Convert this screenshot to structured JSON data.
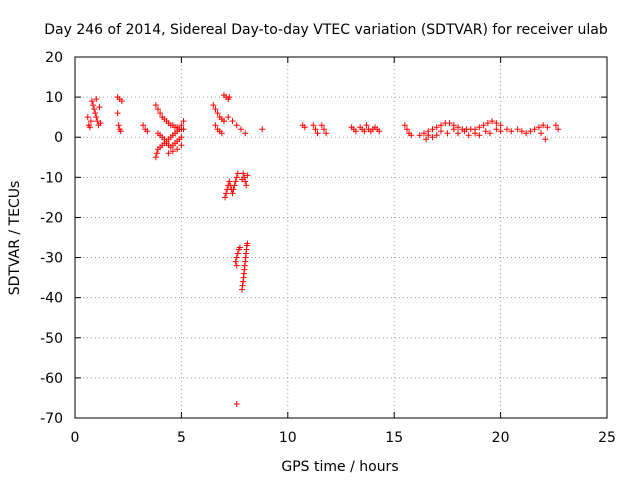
{
  "chart_data": {
    "type": "scatter",
    "title": "Day 246 of 2014, Sidereal Day-to-day VTEC variation (SDTVAR) for receiver ulab",
    "xlabel": "GPS time / hours",
    "ylabel": "SDTVAR / TECUs",
    "xlim": [
      0,
      25
    ],
    "ylim": [
      -70,
      20
    ],
    "xticks": [
      0,
      5,
      10,
      15,
      20,
      25
    ],
    "yticks": [
      -70,
      -60,
      -50,
      -40,
      -30,
      -20,
      -10,
      0,
      10,
      20
    ],
    "grid": true,
    "marker": "+",
    "series_color": "#ff0000",
    "series": [
      {
        "name": "SDTVAR",
        "points": [
          [
            0.6,
            5
          ],
          [
            0.65,
            3
          ],
          [
            0.7,
            2.5
          ],
          [
            0.8,
            9
          ],
          [
            0.85,
            8
          ],
          [
            0.9,
            7
          ],
          [
            0.95,
            6
          ],
          [
            1.0,
            5
          ],
          [
            1.05,
            4
          ],
          [
            1.1,
            3
          ],
          [
            1.15,
            7.5
          ],
          [
            1.2,
            3.5
          ],
          [
            1.0,
            9.5
          ],
          [
            0.75,
            4
          ],
          [
            2.0,
            10
          ],
          [
            2.1,
            9.5
          ],
          [
            2.2,
            9
          ],
          [
            2.0,
            6
          ],
          [
            2.05,
            3
          ],
          [
            2.1,
            2
          ],
          [
            2.15,
            1.5
          ],
          [
            3.2,
            3
          ],
          [
            3.3,
            2
          ],
          [
            3.4,
            1.5
          ],
          [
            3.8,
            8
          ],
          [
            3.9,
            7
          ],
          [
            4.0,
            6
          ],
          [
            4.1,
            5
          ],
          [
            4.2,
            4.5
          ],
          [
            4.3,
            4
          ],
          [
            4.4,
            3.5
          ],
          [
            4.5,
            3
          ],
          [
            4.6,
            3
          ],
          [
            4.7,
            2.5
          ],
          [
            4.8,
            2.5
          ],
          [
            4.9,
            2
          ],
          [
            5.0,
            2
          ],
          [
            5.1,
            2
          ],
          [
            3.8,
            -5
          ],
          [
            3.85,
            -4
          ],
          [
            3.9,
            -3
          ],
          [
            4.0,
            -2.5
          ],
          [
            4.1,
            -2
          ],
          [
            4.2,
            -1.5
          ],
          [
            4.3,
            -1
          ],
          [
            4.4,
            -0.5
          ],
          [
            4.5,
            0
          ],
          [
            4.6,
            0.5
          ],
          [
            4.7,
            1
          ],
          [
            4.8,
            1.5
          ],
          [
            4.9,
            2
          ],
          [
            5.0,
            3
          ],
          [
            5.1,
            4
          ],
          [
            3.9,
            1
          ],
          [
            4.0,
            0.5
          ],
          [
            4.1,
            0
          ],
          [
            4.2,
            -0.5
          ],
          [
            4.3,
            -1.5
          ],
          [
            4.4,
            -2
          ],
          [
            4.5,
            -2.5
          ],
          [
            4.6,
            -2
          ],
          [
            4.7,
            -1.5
          ],
          [
            4.8,
            -1
          ],
          [
            4.9,
            -0.5
          ],
          [
            5.0,
            0
          ],
          [
            4.4,
            -4
          ],
          [
            4.6,
            -3.5
          ],
          [
            4.8,
            -3
          ],
          [
            5.0,
            -2
          ],
          [
            6.5,
            8
          ],
          [
            6.6,
            7
          ],
          [
            6.7,
            6
          ],
          [
            6.8,
            5
          ],
          [
            6.9,
            4.5
          ],
          [
            7.0,
            4
          ],
          [
            6.6,
            3
          ],
          [
            6.7,
            2
          ],
          [
            6.8,
            1.5
          ],
          [
            6.9,
            1
          ],
          [
            7.0,
            4
          ],
          [
            7.2,
            5
          ],
          [
            7.4,
            4
          ],
          [
            7.6,
            3
          ],
          [
            7.8,
            2
          ],
          [
            8.0,
            1
          ],
          [
            7.0,
            10.5
          ],
          [
            7.1,
            10
          ],
          [
            7.2,
            9.5
          ],
          [
            7.25,
            10
          ],
          [
            7.05,
            -15
          ],
          [
            7.1,
            -14
          ],
          [
            7.15,
            -13
          ],
          [
            7.2,
            -12
          ],
          [
            7.25,
            -11
          ],
          [
            7.3,
            -12
          ],
          [
            7.35,
            -13
          ],
          [
            7.4,
            -14
          ],
          [
            7.45,
            -13
          ],
          [
            7.5,
            -12
          ],
          [
            7.55,
            -11
          ],
          [
            7.6,
            -10
          ],
          [
            7.65,
            -9
          ],
          [
            7.9,
            -9
          ],
          [
            7.95,
            -10
          ],
          [
            8.0,
            -11
          ],
          [
            8.05,
            -12
          ],
          [
            7.85,
            -10.5
          ],
          [
            8.1,
            -9.5
          ],
          [
            7.55,
            -31
          ],
          [
            7.6,
            -30
          ],
          [
            7.65,
            -29
          ],
          [
            7.7,
            -28
          ],
          [
            7.75,
            -27.5
          ],
          [
            7.6,
            -32
          ],
          [
            7.85,
            -38
          ],
          [
            7.87,
            -37
          ],
          [
            7.9,
            -36
          ],
          [
            7.92,
            -35
          ],
          [
            7.94,
            -34
          ],
          [
            7.96,
            -33
          ],
          [
            7.98,
            -32
          ],
          [
            8.0,
            -31
          ],
          [
            8.02,
            -30
          ],
          [
            8.04,
            -29
          ],
          [
            8.06,
            -28
          ],
          [
            8.08,
            -27
          ],
          [
            8.1,
            -26.5
          ],
          [
            7.6,
            -66.5
          ],
          [
            8.8,
            2
          ],
          [
            10.7,
            3
          ],
          [
            10.8,
            2.5
          ],
          [
            11.2,
            3
          ],
          [
            11.3,
            2
          ],
          [
            11.4,
            1
          ],
          [
            11.6,
            3
          ],
          [
            11.7,
            2
          ],
          [
            11.8,
            1
          ],
          [
            13.0,
            2.5
          ],
          [
            13.1,
            2
          ],
          [
            13.2,
            1.5
          ],
          [
            13.4,
            2.5
          ],
          [
            13.5,
            2
          ],
          [
            13.6,
            1.5
          ],
          [
            13.7,
            3
          ],
          [
            13.8,
            2
          ],
          [
            13.9,
            1.5
          ],
          [
            14.0,
            2
          ],
          [
            14.1,
            2.5
          ],
          [
            14.2,
            2
          ],
          [
            14.3,
            1.5
          ],
          [
            15.5,
            3
          ],
          [
            15.6,
            2
          ],
          [
            15.7,
            1
          ],
          [
            15.8,
            0.5
          ],
          [
            16.2,
            0.5
          ],
          [
            16.4,
            1
          ],
          [
            16.6,
            1.5
          ],
          [
            16.8,
            2
          ],
          [
            17.0,
            2.5
          ],
          [
            17.2,
            3
          ],
          [
            17.4,
            3.5
          ],
          [
            17.6,
            3.5
          ],
          [
            17.8,
            3
          ],
          [
            18.0,
            2.5
          ],
          [
            18.2,
            2
          ],
          [
            18.4,
            2
          ],
          [
            18.6,
            2
          ],
          [
            18.8,
            2
          ],
          [
            19.0,
            2.5
          ],
          [
            19.2,
            3
          ],
          [
            19.4,
            3.5
          ],
          [
            19.6,
            4
          ],
          [
            19.8,
            3.5
          ],
          [
            20.0,
            3
          ],
          [
            16.5,
            -0.5
          ],
          [
            16.8,
            0
          ],
          [
            17.0,
            0.5
          ],
          [
            17.5,
            1
          ],
          [
            18.0,
            1
          ],
          [
            18.5,
            0.5
          ],
          [
            19.0,
            0.5
          ],
          [
            19.5,
            1
          ],
          [
            20.0,
            1.5
          ],
          [
            16.6,
            0.5
          ],
          [
            17.2,
            1.5
          ],
          [
            17.8,
            2
          ],
          [
            18.3,
            1.5
          ],
          [
            18.8,
            1
          ],
          [
            19.3,
            1.5
          ],
          [
            19.8,
            2
          ],
          [
            20.3,
            2
          ],
          [
            20.5,
            1.5
          ],
          [
            20.8,
            2
          ],
          [
            21.0,
            1.5
          ],
          [
            21.2,
            1
          ],
          [
            21.4,
            1.5
          ],
          [
            21.6,
            2
          ],
          [
            21.8,
            2.5
          ],
          [
            22.0,
            3
          ],
          [
            22.2,
            2.5
          ],
          [
            21.9,
            1
          ],
          [
            22.1,
            -0.5
          ],
          [
            22.6,
            3
          ],
          [
            22.7,
            2
          ]
        ]
      }
    ]
  }
}
